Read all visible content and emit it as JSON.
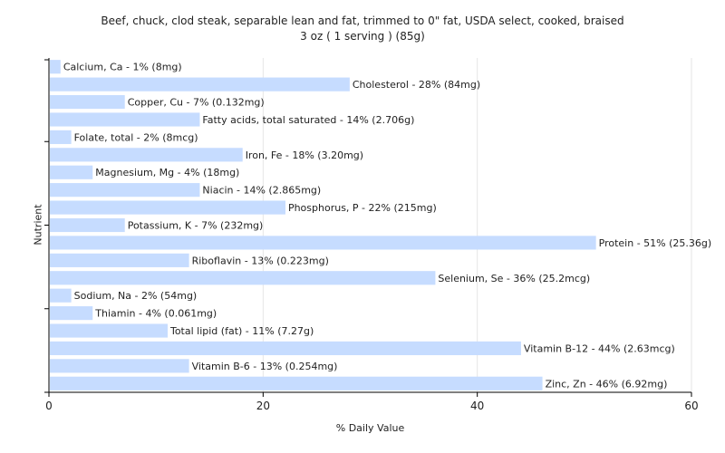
{
  "chart_data": {
    "type": "bar",
    "orientation": "horizontal",
    "title": "Beef, chuck, clod steak, separable lean and fat, trimmed to 0\" fat, USDA select, cooked, braised",
    "subtitle": "3 oz ( 1 serving ) (85g)",
    "xlabel": "% Daily Value",
    "ylabel": "Nutrient",
    "xlim": [
      0,
      60
    ],
    "xticks": [
      "0",
      "20",
      "40",
      "60"
    ],
    "grid": true,
    "bar_color": "#c6dcff",
    "categories": [
      "Calcium, Ca",
      "Cholesterol",
      "Copper, Cu",
      "Fatty acids, total saturated",
      "Folate, total",
      "Iron, Fe",
      "Magnesium, Mg",
      "Niacin",
      "Phosphorus, P",
      "Potassium, K",
      "Protein",
      "Riboflavin",
      "Selenium, Se",
      "Sodium, Na",
      "Thiamin",
      "Total lipid (fat)",
      "Vitamin B-12",
      "Vitamin B-6",
      "Zinc, Zn"
    ],
    "values": [
      1,
      28,
      7,
      14,
      2,
      18,
      4,
      14,
      22,
      7,
      51,
      13,
      36,
      2,
      4,
      11,
      44,
      13,
      46
    ],
    "labels": [
      "Calcium, Ca - 1% (8mg)",
      "Cholesterol - 28% (84mg)",
      "Copper, Cu - 7% (0.132mg)",
      "Fatty acids, total saturated - 14% (2.706g)",
      "Folate, total - 2% (8mcg)",
      "Iron, Fe - 18% (3.20mg)",
      "Magnesium, Mg - 4% (18mg)",
      "Niacin - 14% (2.865mg)",
      "Phosphorus, P - 22% (215mg)",
      "Potassium, K - 7% (232mg)",
      "Protein - 51% (25.36g)",
      "Riboflavin - 13% (0.223mg)",
      "Selenium, Se - 36% (25.2mcg)",
      "Sodium, Na - 2% (54mg)",
      "Thiamin - 4% (0.061mg)",
      "Total lipid (fat) - 11% (7.27g)",
      "Vitamin B-12 - 44% (2.63mcg)",
      "Vitamin B-6 - 13% (0.254mg)",
      "Zinc, Zn - 46% (6.92mg)"
    ]
  }
}
